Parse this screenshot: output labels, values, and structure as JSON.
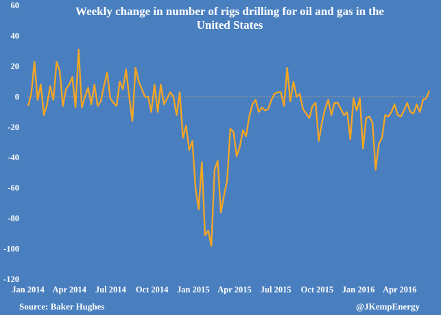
{
  "chart_data": {
    "type": "line",
    "title_lines": [
      "Weekly change in number of rigs drilling for oil and gas in the",
      "United States"
    ],
    "xlabel": "",
    "ylabel": "",
    "ylim": [
      -120,
      60
    ],
    "yticks": [
      -120,
      -100,
      -80,
      -60,
      -40,
      -20,
      0,
      20,
      40,
      60
    ],
    "xtick_labels": [
      "Jan 2014",
      "Apr 2014",
      "Jul 2014",
      "Oct 2014",
      "Jan 2015",
      "Apr 2015",
      "Jul 2015",
      "Oct 2015",
      "Jan 2016",
      "Apr 2016"
    ],
    "grid": false,
    "zero_line": true,
    "colors": {
      "line": "#f5a623",
      "background": "#4a7fbf",
      "text": "#ffffff",
      "zero_line": "#c8a070"
    },
    "series": [
      {
        "week_values": [
          -6,
          2,
          23,
          -2,
          8,
          -12,
          -5,
          7,
          -2,
          23,
          17,
          -6,
          5,
          8,
          13,
          -7,
          31,
          -7,
          0,
          6,
          -5,
          8,
          -6,
          -3,
          7,
          16,
          -1,
          -4,
          -6,
          10,
          5,
          18,
          0,
          -16,
          19,
          10,
          5,
          0,
          0,
          -10,
          8,
          -10,
          8,
          -5,
          -1,
          3,
          0,
          -12,
          3,
          -27,
          -19,
          -35,
          -29,
          -60,
          -74,
          -43,
          -91,
          -88,
          -98,
          -48,
          -42,
          -76,
          -65,
          -55,
          -21,
          -23,
          -39,
          -33,
          -22,
          -26,
          -13,
          -5,
          -2,
          -10,
          -7,
          -9,
          -8,
          -2,
          2,
          3,
          3,
          -6,
          19,
          -3,
          10,
          0,
          2,
          -8,
          -11,
          -14,
          -6,
          -4,
          -29,
          -17,
          -8,
          -2,
          -12,
          -4,
          -4,
          -8,
          -12,
          -10,
          -28,
          -1,
          -9,
          -1,
          -34,
          -14,
          -13,
          -17,
          -48,
          -31,
          -27,
          -12,
          -13,
          -10,
          -5,
          -12,
          -13,
          -9,
          -4,
          -10,
          -11,
          -5,
          -10,
          -2,
          -1,
          4
        ]
      }
    ]
  },
  "source": "Source: Baker Hughes",
  "credit": "@JKempEnergy"
}
